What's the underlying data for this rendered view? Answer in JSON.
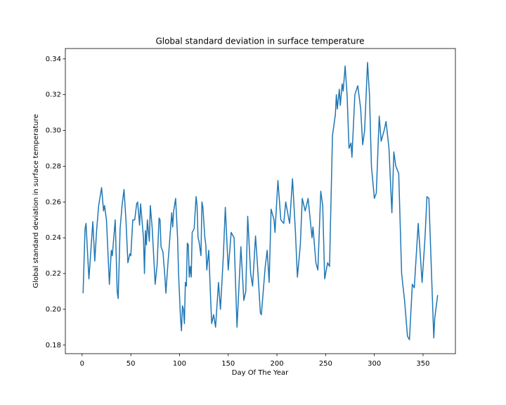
{
  "chart_data": {
    "type": "line",
    "title": "Global standard deviation in surface temperature",
    "x_label": "Day Of The Year",
    "y_label": "Global standard deviation in surface temperature",
    "xlim": [
      -17.2,
      383.2
    ],
    "ylim": [
      0.1752,
      0.3458
    ],
    "xticks": [
      0,
      50,
      100,
      150,
      200,
      250,
      300,
      350
    ],
    "yticks": [
      0.18,
      {
        "value": 0.2,
        "label": "0.20"
      },
      0.22,
      0.24,
      0.26,
      0.28,
      {
        "value": 0.3,
        "label": "0.30"
      },
      0.32,
      0.34
    ],
    "grid": false,
    "series": [
      {
        "color": "#1f77b4",
        "x": [
          1,
          3,
          4,
          7,
          11,
          13,
          15,
          17,
          20,
          22,
          23,
          25,
          28,
          30,
          31,
          34,
          36,
          37,
          39,
          41,
          43,
          45,
          47,
          49,
          50,
          52,
          54,
          56,
          57,
          59,
          60,
          63,
          64,
          65,
          66,
          67,
          69,
          70,
          72,
          75,
          77,
          79,
          80,
          81,
          83,
          85,
          86,
          88,
          89,
          92,
          93,
          94,
          96,
          98,
          99,
          101,
          102,
          103,
          104,
          105,
          106,
          107,
          108,
          109,
          110,
          111,
          112,
          113,
          115,
          117,
          118,
          119,
          120,
          122,
          123,
          124,
          126,
          127,
          128,
          130,
          132,
          133,
          135,
          137,
          140,
          142,
          145,
          147,
          150,
          153,
          156,
          159,
          163,
          166,
          168,
          170,
          173,
          175,
          178,
          180,
          183,
          184,
          188,
          190,
          192,
          194,
          197,
          198,
          201,
          204,
          207,
          209,
          213,
          214,
          216,
          219,
          221,
          224,
          226,
          229,
          232,
          236,
          237,
          240,
          242,
          245,
          247,
          249,
          252,
          254,
          257,
          260,
          261,
          262,
          264,
          265,
          267,
          268,
          270,
          272,
          274,
          276,
          277,
          280,
          283,
          286,
          288,
          290,
          293,
          295,
          297,
          300,
          302,
          305,
          307,
          310,
          312,
          315,
          318,
          320,
          322,
          325,
          328,
          331,
          334,
          336,
          339,
          341,
          345,
          347,
          349,
          352,
          354,
          356,
          359,
          361,
          362,
          365
        ],
        "values": [
          0.209,
          0.245,
          0.248,
          0.217,
          0.249,
          0.227,
          0.245,
          0.258,
          0.268,
          0.255,
          0.258,
          0.25,
          0.214,
          0.233,
          0.23,
          0.25,
          0.21,
          0.206,
          0.245,
          0.258,
          0.267,
          0.25,
          0.226,
          0.231,
          0.23,
          0.25,
          0.25,
          0.259,
          0.26,
          0.247,
          0.259,
          0.24,
          0.22,
          0.244,
          0.236,
          0.25,
          0.238,
          0.258,
          0.245,
          0.214,
          0.225,
          0.251,
          0.25,
          0.235,
          0.232,
          0.218,
          0.209,
          0.225,
          0.232,
          0.254,
          0.246,
          0.255,
          0.262,
          0.24,
          0.22,
          0.195,
          0.188,
          0.202,
          0.2,
          0.192,
          0.215,
          0.213,
          0.237,
          0.236,
          0.218,
          0.224,
          0.218,
          0.243,
          0.245,
          0.263,
          0.258,
          0.24,
          0.238,
          0.23,
          0.26,
          0.257,
          0.24,
          0.236,
          0.222,
          0.233,
          0.205,
          0.192,
          0.197,
          0.19,
          0.215,
          0.2,
          0.23,
          0.257,
          0.222,
          0.243,
          0.24,
          0.19,
          0.235,
          0.205,
          0.21,
          0.252,
          0.22,
          0.213,
          0.241,
          0.225,
          0.198,
          0.197,
          0.224,
          0.233,
          0.215,
          0.256,
          0.25,
          0.243,
          0.272,
          0.25,
          0.248,
          0.26,
          0.248,
          0.256,
          0.273,
          0.243,
          0.218,
          0.236,
          0.262,
          0.255,
          0.262,
          0.24,
          0.246,
          0.226,
          0.222,
          0.266,
          0.258,
          0.217,
          0.226,
          0.224,
          0.297,
          0.309,
          0.32,
          0.312,
          0.323,
          0.314,
          0.326,
          0.322,
          0.336,
          0.32,
          0.29,
          0.293,
          0.285,
          0.32,
          0.325,
          0.312,
          0.292,
          0.3,
          0.338,
          0.32,
          0.28,
          0.262,
          0.265,
          0.308,
          0.294,
          0.3,
          0.305,
          0.29,
          0.254,
          0.288,
          0.28,
          0.276,
          0.22,
          0.205,
          0.185,
          0.183,
          0.214,
          0.212,
          0.248,
          0.232,
          0.215,
          0.24,
          0.263,
          0.262,
          0.215,
          0.184,
          0.195,
          0.208
        ]
      }
    ]
  }
}
